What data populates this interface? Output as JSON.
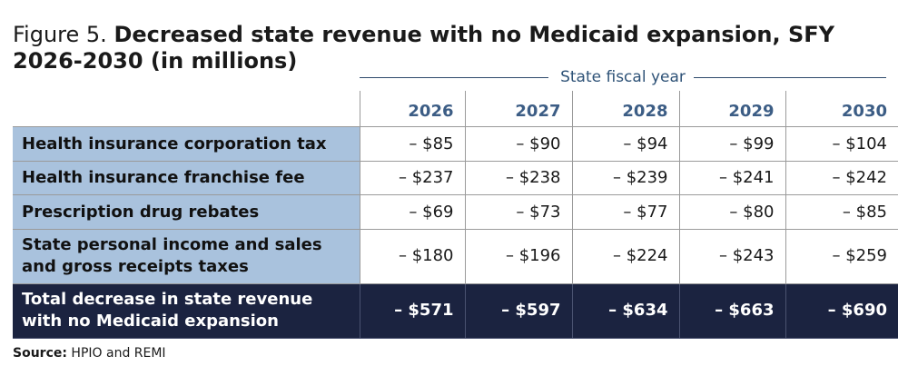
{
  "figure": {
    "label": "Figure 5. ",
    "title": "Decreased state revenue with no Medicaid expansion, SFY 2026-2030 (in millions)"
  },
  "column_group": "State fiscal year",
  "years": [
    "2026",
    "2027",
    "2028",
    "2029",
    "2030"
  ],
  "rows": [
    {
      "label": "Health insurance corporation tax",
      "values": [
        "– $85",
        "– $90",
        "– $94",
        "– $99",
        "– $104"
      ]
    },
    {
      "label": "Health insurance franchise fee",
      "values": [
        "– $237",
        "– $238",
        "– $239",
        "– $241",
        "– $242"
      ]
    },
    {
      "label": "Prescription drug rebates",
      "values": [
        "– $69",
        "– $73",
        "– $77",
        "– $80",
        "– $85"
      ]
    },
    {
      "label": "State personal income and sales and gross receipts taxes",
      "values": [
        "– $180",
        "– $196",
        "– $224",
        "– $243",
        "– $259"
      ]
    }
  ],
  "total": {
    "label": "Total decrease in state revenue with no Medicaid expansion",
    "values": [
      "– $571",
      "– $597",
      "– $634",
      "– $663",
      "– $690"
    ]
  },
  "source": {
    "label": "Source:",
    "text": " HPIO and REMI"
  },
  "colors": {
    "row_label_bg": "#a9c2dd",
    "total_bg": "#1b2340",
    "header_text": "#3c5d85"
  }
}
